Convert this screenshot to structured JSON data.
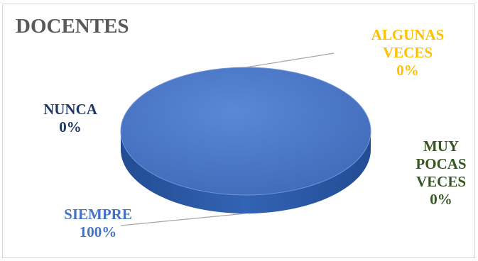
{
  "chart_data": {
    "type": "pie",
    "title": "DOCENTES",
    "slices": [
      {
        "label": "SIEMPRE",
        "value": 100,
        "value_label": "100%",
        "color": "#4472c4"
      },
      {
        "label": "ALGUNAS VECES",
        "value": 0,
        "value_label": "0%",
        "color": "#ffc000"
      },
      {
        "label": "MUY POCAS VECES",
        "value": 0,
        "value_label": "0%",
        "color": "#548235"
      },
      {
        "label": "NUNCA",
        "value": 0,
        "value_label": "0%",
        "color": "#1f3864"
      }
    ],
    "style": "3d-pie",
    "legend": "none"
  },
  "labels": {
    "siempre": {
      "name": "SIEMPRE",
      "pct": "100%"
    },
    "algunas": {
      "name_line1": "ALGUNAS",
      "name_line2": "VECES",
      "pct": "0%"
    },
    "muy_pocas": {
      "name_line1": "MUY",
      "name_line2": "POCAS",
      "name_line3": "VECES",
      "pct": "0%"
    },
    "nunca": {
      "name": "NUNCA",
      "pct": "0%"
    }
  },
  "colors": {
    "pie_top": "#4472c4",
    "pie_side": "#2e5aa8",
    "leader_line": "#a6a6a6",
    "title": "#595959"
  }
}
